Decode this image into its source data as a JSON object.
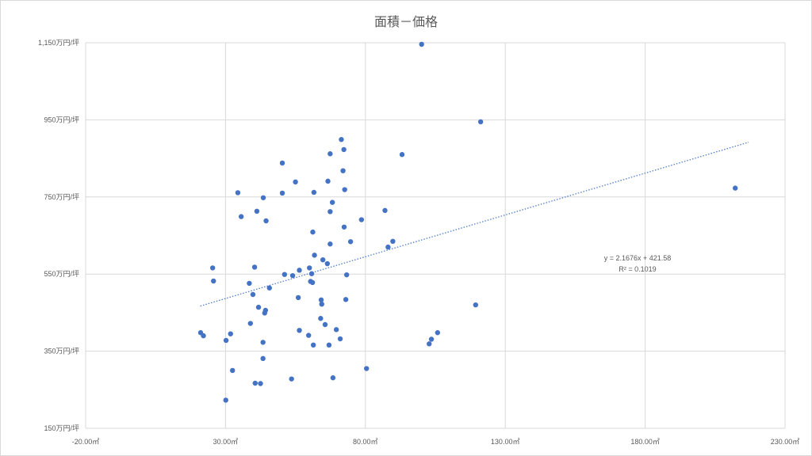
{
  "chart_data": {
    "type": "scatter",
    "title": "面積－価格",
    "xlabel": "",
    "ylabel": "",
    "xlim": [
      -20,
      230
    ],
    "ylim": [
      150,
      1150
    ],
    "x_ticks": [
      -20,
      30,
      80,
      130,
      180,
      230
    ],
    "x_tick_labels": [
      "-20.00㎡",
      "30.00㎡",
      "80.00㎡",
      "130.00㎡",
      "180.00㎡",
      "230.00㎡"
    ],
    "y_ticks": [
      150,
      350,
      550,
      750,
      950,
      1150
    ],
    "y_tick_labels": [
      "150万円/坪",
      "350万円/坪",
      "550万円/坪",
      "750万円/坪",
      "950万円/坪",
      "1,150万円/坪"
    ],
    "grid": true,
    "legend": "none",
    "marker_color": "#4472c4",
    "trendline": {
      "type": "linear",
      "slope": 2.1676,
      "intercept": 421.58,
      "x_range": [
        21,
        217
      ],
      "color": "#4472c4",
      "style": "dotted",
      "equation": "y = 2.1676x + 421.58",
      "r_squared": "R² = 0.1019"
    },
    "points": [
      {
        "x": 21.1,
        "y": 398
      },
      {
        "x": 22.1,
        "y": 390
      },
      {
        "x": 25.4,
        "y": 566
      },
      {
        "x": 25.7,
        "y": 532
      },
      {
        "x": 30.1,
        "y": 223
      },
      {
        "x": 30.2,
        "y": 378
      },
      {
        "x": 31.8,
        "y": 395
      },
      {
        "x": 32.5,
        "y": 300
      },
      {
        "x": 34.4,
        "y": 761
      },
      {
        "x": 35.6,
        "y": 699
      },
      {
        "x": 38.5,
        "y": 526
      },
      {
        "x": 38.9,
        "y": 422
      },
      {
        "x": 39.8,
        "y": 497
      },
      {
        "x": 40.4,
        "y": 568
      },
      {
        "x": 40.6,
        "y": 267
      },
      {
        "x": 41.2,
        "y": 713
      },
      {
        "x": 41.8,
        "y": 464
      },
      {
        "x": 42.5,
        "y": 266
      },
      {
        "x": 43.4,
        "y": 373
      },
      {
        "x": 43.4,
        "y": 331
      },
      {
        "x": 43.5,
        "y": 748
      },
      {
        "x": 44.0,
        "y": 449
      },
      {
        "x": 44.3,
        "y": 456
      },
      {
        "x": 44.5,
        "y": 688
      },
      {
        "x": 45.7,
        "y": 514
      },
      {
        "x": 50.3,
        "y": 838
      },
      {
        "x": 50.3,
        "y": 760
      },
      {
        "x": 51.1,
        "y": 549
      },
      {
        "x": 53.6,
        "y": 278
      },
      {
        "x": 54.0,
        "y": 546
      },
      {
        "x": 55.0,
        "y": 789
      },
      {
        "x": 56.0,
        "y": 489
      },
      {
        "x": 56.4,
        "y": 404
      },
      {
        "x": 56.4,
        "y": 560
      },
      {
        "x": 59.7,
        "y": 391
      },
      {
        "x": 60.0,
        "y": 566
      },
      {
        "x": 60.4,
        "y": 531
      },
      {
        "x": 60.8,
        "y": 551
      },
      {
        "x": 61.1,
        "y": 528
      },
      {
        "x": 61.4,
        "y": 366
      },
      {
        "x": 61.2,
        "y": 659
      },
      {
        "x": 61.6,
        "y": 762
      },
      {
        "x": 61.8,
        "y": 599
      },
      {
        "x": 64.0,
        "y": 435
      },
      {
        "x": 64.2,
        "y": 483
      },
      {
        "x": 64.4,
        "y": 472
      },
      {
        "x": 64.8,
        "y": 587
      },
      {
        "x": 65.6,
        "y": 419
      },
      {
        "x": 66.4,
        "y": 577
      },
      {
        "x": 66.6,
        "y": 791
      },
      {
        "x": 67.0,
        "y": 366
      },
      {
        "x": 67.4,
        "y": 628
      },
      {
        "x": 67.4,
        "y": 712
      },
      {
        "x": 67.4,
        "y": 862
      },
      {
        "x": 68.2,
        "y": 736
      },
      {
        "x": 68.4,
        "y": 281
      },
      {
        "x": 69.6,
        "y": 406
      },
      {
        "x": 71.0,
        "y": 382
      },
      {
        "x": 71.4,
        "y": 899
      },
      {
        "x": 72.0,
        "y": 818
      },
      {
        "x": 72.3,
        "y": 873
      },
      {
        "x": 72.4,
        "y": 672
      },
      {
        "x": 72.6,
        "y": 769
      },
      {
        "x": 73.0,
        "y": 484
      },
      {
        "x": 73.3,
        "y": 548
      },
      {
        "x": 74.7,
        "y": 634
      },
      {
        "x": 78.6,
        "y": 691
      },
      {
        "x": 80.4,
        "y": 305
      },
      {
        "x": 87.0,
        "y": 715
      },
      {
        "x": 88.1,
        "y": 620
      },
      {
        "x": 89.8,
        "y": 635
      },
      {
        "x": 93.1,
        "y": 860
      },
      {
        "x": 100.1,
        "y": 1146
      },
      {
        "x": 102.8,
        "y": 369
      },
      {
        "x": 103.6,
        "y": 381
      },
      {
        "x": 105.8,
        "y": 398
      },
      {
        "x": 119.4,
        "y": 470
      },
      {
        "x": 121.2,
        "y": 945
      },
      {
        "x": 212.2,
        "y": 773
      }
    ]
  }
}
